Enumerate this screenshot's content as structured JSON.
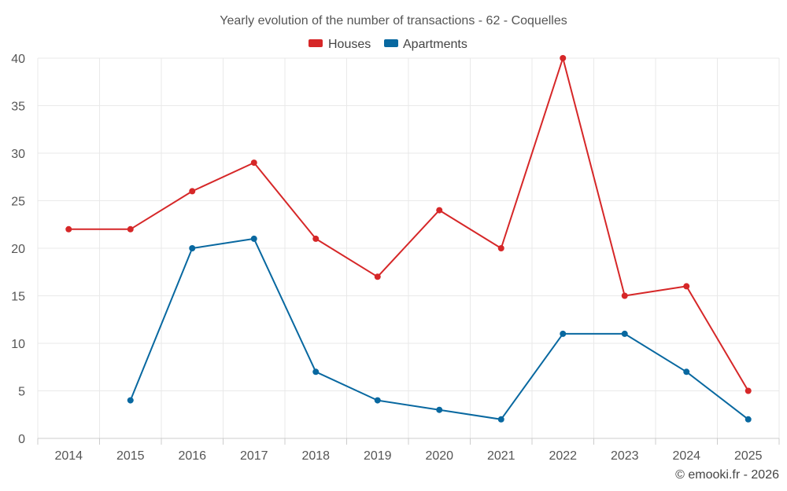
{
  "chart_data": {
    "type": "line",
    "title": "Yearly evolution of the number of transactions - 62 - Coquelles",
    "categories": [
      "2014",
      "2015",
      "2016",
      "2017",
      "2018",
      "2019",
      "2020",
      "2021",
      "2022",
      "2023",
      "2024",
      "2025"
    ],
    "series": [
      {
        "name": "Houses",
        "color": "#d62728",
        "values": [
          22,
          22,
          26,
          29,
          21,
          17,
          24,
          20,
          40,
          15,
          16,
          5
        ]
      },
      {
        "name": "Apartments",
        "color": "#0868a0",
        "values": [
          null,
          4,
          20,
          21,
          7,
          4,
          3,
          2,
          11,
          11,
          7,
          2
        ]
      }
    ],
    "ylim": [
      0,
      40
    ],
    "yticks": [
      0,
      5,
      10,
      15,
      20,
      25,
      30,
      35,
      40
    ],
    "xlabel": "",
    "ylabel": "",
    "legend_position": "top-center",
    "grid": true
  },
  "credit": "© emooki.fr - 2026"
}
